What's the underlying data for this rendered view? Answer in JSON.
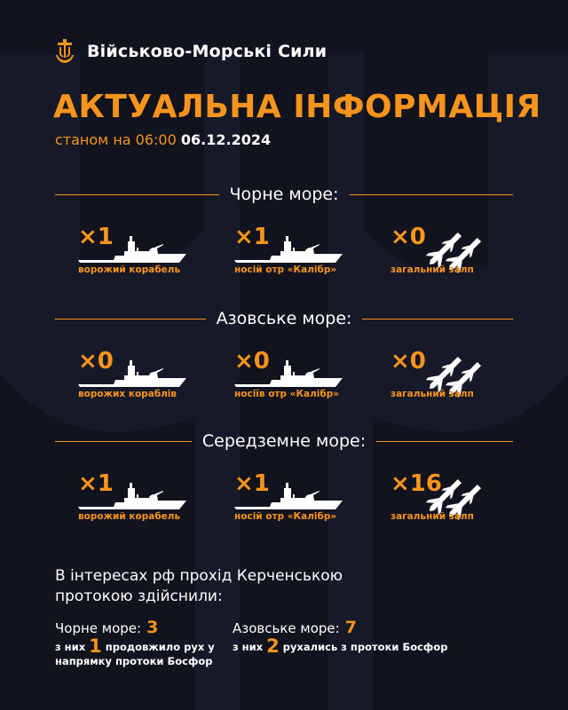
{
  "header": {
    "org_name": "Військово-Морські Сили",
    "logo_icon": "trident-anchor-icon"
  },
  "headline": "АКТУАЛЬНА ІНФОРМАЦІЯ",
  "subline": {
    "prefix": "станом на 06:00",
    "date": "06.12.2024"
  },
  "colors": {
    "accent": "#f7941d",
    "background": "#11131e",
    "text": "#ffffff"
  },
  "seas": [
    {
      "name": "Чорне море:",
      "items": [
        {
          "count": "×1",
          "icon": "ship-icon",
          "caption": "ворожий корабель"
        },
        {
          "count": "×1",
          "icon": "ship-icon",
          "caption": "носій отр «Калібр»"
        },
        {
          "count": "×0",
          "icon": "missiles-icon",
          "caption": "загальний залп"
        }
      ]
    },
    {
      "name": "Азовське море:",
      "items": [
        {
          "count": "×0",
          "icon": "ship-icon",
          "caption": "ворожих кораблів"
        },
        {
          "count": "×0",
          "icon": "ship-icon",
          "caption": "носіїв отр «Калібр»"
        },
        {
          "count": "×0",
          "icon": "missiles-icon",
          "caption": "загальний залп"
        }
      ]
    },
    {
      "name": "Середземне море:",
      "items": [
        {
          "count": "×1",
          "icon": "ship-icon",
          "caption": "ворожий корабель"
        },
        {
          "count": "×1",
          "icon": "ship-icon",
          "caption": "носій отр «Калібр»"
        },
        {
          "count": "×16",
          "icon": "missiles-icon",
          "caption": "загальний залп"
        }
      ]
    }
  ],
  "kerch": {
    "title": "В інтересах рф прохід Керченською протокою здійснили:",
    "black_sea": {
      "label": "Чорне море:",
      "value": "3",
      "sub_prefix": "з них",
      "sub_value": "1",
      "sub_suffix": "продовжило рух у напрямку протоки Босфор"
    },
    "azov_sea": {
      "label": "Азовське море:",
      "value": "7",
      "sub_prefix": "з них",
      "sub_value": "2",
      "sub_suffix": "рухались з протоки Босфор"
    }
  }
}
